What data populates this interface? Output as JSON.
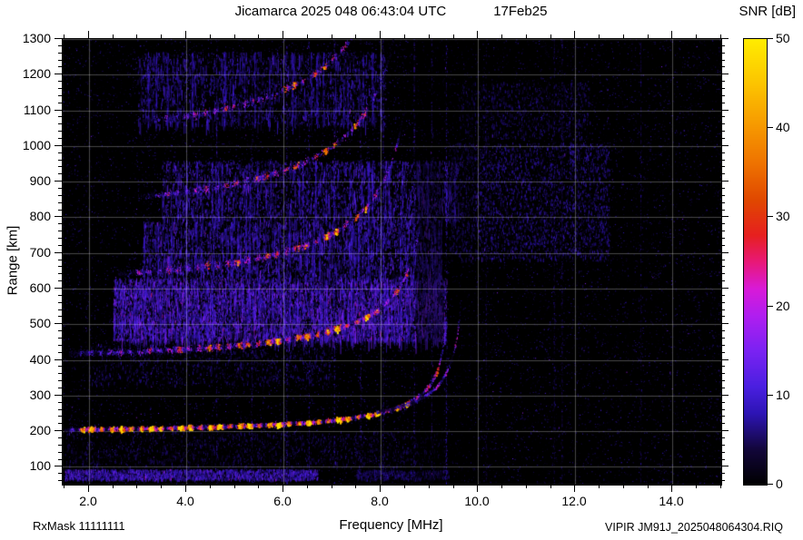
{
  "chart_data": {
    "type": "heatmap",
    "title": "Jicamarca 2025 048 06:43:04 UTC",
    "date_label": "17Feb25",
    "xlabel": "Frequency [MHz]",
    "ylabel": "Range [km]",
    "footnote_left": "RxMask 11111111",
    "footnote_right": "VIPIR JM91J_2025048064304.RIQ",
    "xlim": [
      1.46,
      15.0
    ],
    "ylim": [
      50,
      1300
    ],
    "xticks": [
      2.0,
      4.0,
      6.0,
      8.0,
      10.0,
      12.0,
      14.0
    ],
    "xtick_labels": [
      "2.0",
      "4.0",
      "6.0",
      "8.0",
      "10.0",
      "12.0",
      "14.0"
    ],
    "x_minor_step": 0.5,
    "yticks": [
      100,
      200,
      300,
      400,
      500,
      600,
      700,
      800,
      900,
      1000,
      1100,
      1200,
      1300
    ],
    "y_minor_step": 20,
    "grid": true,
    "grid_color": "rgba(255,255,255,0.28)",
    "background_color": "#000000",
    "colorbar": {
      "label": "SNR [dB]",
      "min": 0,
      "max": 50,
      "ticks": [
        0,
        10,
        20,
        30,
        40,
        50
      ],
      "colormap": [
        [
          0.0,
          "#000000"
        ],
        [
          0.08,
          "#12063a"
        ],
        [
          0.16,
          "#2d14b4"
        ],
        [
          0.22,
          "#4a1fe0"
        ],
        [
          0.3,
          "#7a22f2"
        ],
        [
          0.38,
          "#b01ef0"
        ],
        [
          0.44,
          "#d81ad8"
        ],
        [
          0.5,
          "#e81878"
        ],
        [
          0.56,
          "#e62020"
        ],
        [
          0.64,
          "#e04800"
        ],
        [
          0.72,
          "#ee7200"
        ],
        [
          0.8,
          "#f69600"
        ],
        [
          0.9,
          "#fcc400"
        ],
        [
          1.0,
          "#ffec00"
        ]
      ]
    },
    "traces": [
      {
        "name": "F-layer 1-hop O-mode",
        "hop": 1,
        "f_start": 1.5,
        "f_end": 9.34,
        "fc": 9.45,
        "r0": 205,
        "A": 55,
        "r_max": 470,
        "peak_db": 50,
        "width_km": 6,
        "gap": 0.02,
        "ramp": "mid"
      },
      {
        "name": "F-layer 1-hop X-mode",
        "hop": 1,
        "f_start": 7.9,
        "f_end": 9.64,
        "fc": 9.74,
        "r0": 212,
        "A": 60,
        "r_max": 470,
        "peak_db": 30,
        "width_km": 5,
        "gap": 0.15,
        "ramp": "end"
      },
      {
        "name": "F-layer 2-hop",
        "hop": 2,
        "f_start": 1.6,
        "f_end": 8.98,
        "fc": 9.06,
        "r0": 418,
        "A": 115,
        "r_max": 790,
        "peak_db": 40,
        "width_km": 8,
        "gap": 0.15,
        "ramp": "mid"
      },
      {
        "name": "F-layer 3-hop",
        "hop": 3,
        "f_start": 2.6,
        "f_end": 8.62,
        "fc": 8.85,
        "r0": 635,
        "A": 190,
        "r_max": 980,
        "peak_db": 34,
        "width_km": 9,
        "gap": 0.35,
        "ramp": "mid"
      },
      {
        "name": "F-layer 4-hop",
        "hop": 4,
        "f_start": 3.0,
        "f_end": 8.4,
        "fc": 8.78,
        "r0": 845,
        "A": 235,
        "r_max": 1160,
        "peak_db": 32,
        "width_km": 9,
        "gap": 0.45,
        "ramp": "mid"
      },
      {
        "name": "F-layer 5-hop",
        "hop": 5,
        "f_start": 3.1,
        "f_end": 7.9,
        "fc": 8.68,
        "r0": 1050,
        "A": 280,
        "r_max": 1290,
        "peak_db": 32,
        "width_km": 9,
        "gap": 0.5,
        "ramp": "mid"
      }
    ],
    "noise_regions": [
      {
        "f0": 2.5,
        "f1": 9.35,
        "r0": 455,
        "r1": 630,
        "count": 9000,
        "db_min": 3,
        "db_max": 16,
        "streaks": true
      },
      {
        "f0": 3.1,
        "f1": 9.25,
        "r0": 630,
        "r1": 790,
        "count": 4200,
        "db_min": 2,
        "db_max": 13,
        "streaks": true
      },
      {
        "f0": 3.5,
        "f1": 9.6,
        "r0": 790,
        "r1": 960,
        "count": 3600,
        "db_min": 2,
        "db_max": 13,
        "streaks": true
      },
      {
        "f0": 9.4,
        "f1": 12.7,
        "r0": 680,
        "r1": 1010,
        "count": 3200,
        "db_min": 2,
        "db_max": 10,
        "streaks": false
      },
      {
        "f0": 3.0,
        "f1": 8.1,
        "r0": 1060,
        "r1": 1265,
        "count": 2600,
        "db_min": 2,
        "db_max": 11,
        "streaks": true
      },
      {
        "f0": 2.0,
        "f1": 7.0,
        "r0": 330,
        "r1": 455,
        "count": 1200,
        "db_min": 1,
        "db_max": 8,
        "streaks": false
      },
      {
        "f0": 1.5,
        "f1": 6.7,
        "r0": 66,
        "r1": 94,
        "count": 2600,
        "db_min": 3,
        "db_max": 14,
        "streaks": false
      },
      {
        "f0": 7.5,
        "f1": 9.4,
        "r0": 66,
        "r1": 92,
        "count": 600,
        "db_min": 2,
        "db_max": 8,
        "streaks": false
      },
      {
        "f0": 1.5,
        "f1": 9.3,
        "r0": 100,
        "r1": 200,
        "count": 1500,
        "db_min": 1,
        "db_max": 7,
        "streaks": false
      },
      {
        "f0": 9.6,
        "f1": 12.3,
        "r0": 1020,
        "r1": 1180,
        "count": 900,
        "db_min": 1,
        "db_max": 8,
        "streaks": false
      }
    ],
    "rfi_lines": [
      {
        "f": 4.62,
        "db": 7
      },
      {
        "f": 5.34,
        "db": 7
      },
      {
        "f": 6.06,
        "db": 9
      },
      {
        "f": 6.52,
        "db": 8
      },
      {
        "f": 7.04,
        "db": 9
      },
      {
        "f": 7.58,
        "db": 7
      },
      {
        "f": 8.04,
        "db": 7
      },
      {
        "f": 8.68,
        "db": 8
      },
      {
        "f": 9.04,
        "db": 10
      },
      {
        "f": 9.34,
        "db": 8
      },
      {
        "f": 10.16,
        "db": 5
      },
      {
        "f": 11.56,
        "db": 6
      },
      {
        "f": 11.72,
        "db": 6
      },
      {
        "f": 13.34,
        "db": 5
      }
    ],
    "dark_bands": [
      {
        "f0": 8.72,
        "f1": 9.3,
        "alpha": 0.45
      },
      {
        "f0": 9.4,
        "f1": 9.95,
        "alpha": 0.35
      }
    ]
  }
}
